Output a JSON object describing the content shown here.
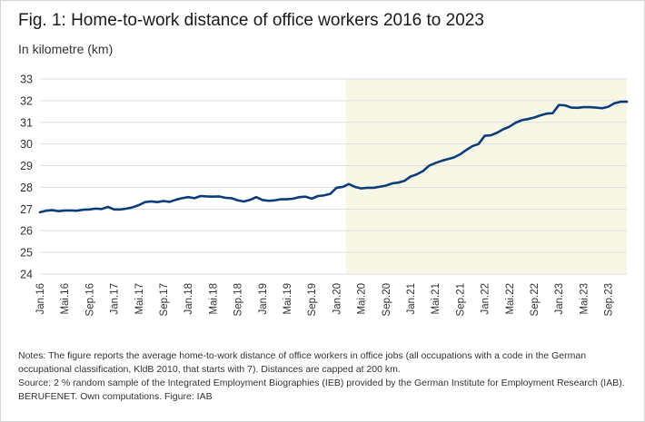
{
  "header": {
    "title": "Fig. 1: Home-to-work distance of office workers 2016 to 2023",
    "subtitle": "In kilometre (km)"
  },
  "footer": {
    "notes": "Notes: The figure reports the average home-to-work distance of office workers in office jobs (all occupations with a code in the German occupational classification, KldB 2010, that starts with 7). Distances are capped at 200 km.",
    "source": "Source: 2 % random sample of the Integrated Employment Biographies (IEB) provided by the German Institute for Employment Research (IAB). BERUFENET. Own computations. Figure: IAB"
  },
  "colors": {
    "line": "#0b3d7a",
    "highlight": "#f8f7e6",
    "grid": "#dedede"
  },
  "chart_data": {
    "type": "line",
    "title": "Fig. 1: Home-to-work distance of office workers 2016 to 2023",
    "ylabel": "In kilometre (km)",
    "ylim": [
      24,
      33
    ],
    "yticks": [
      24,
      25,
      26,
      27,
      28,
      29,
      30,
      31,
      32,
      33
    ],
    "grid": true,
    "x_start": "2016-01",
    "x_end": "2023-12",
    "xticks": [
      {
        "date": "2016-01",
        "label": "Jan.16"
      },
      {
        "date": "2016-05",
        "label": "Mai.16"
      },
      {
        "date": "2016-09",
        "label": "Sep.16"
      },
      {
        "date": "2017-01",
        "label": "Jan.17"
      },
      {
        "date": "2017-05",
        "label": "Mai.17"
      },
      {
        "date": "2017-09",
        "label": "Sep.17"
      },
      {
        "date": "2018-01",
        "label": "Jan.18"
      },
      {
        "date": "2018-05",
        "label": "Mai.18"
      },
      {
        "date": "2018-09",
        "label": "Sep.18"
      },
      {
        "date": "2019-01",
        "label": "Jan.19"
      },
      {
        "date": "2019-05",
        "label": "Mai.19"
      },
      {
        "date": "2019-09",
        "label": "Sep.19"
      },
      {
        "date": "2020-01",
        "label": "Jan.20"
      },
      {
        "date": "2020-05",
        "label": "Mai.20"
      },
      {
        "date": "2020-09",
        "label": "Sep.20"
      },
      {
        "date": "2021-01",
        "label": "Jan.21"
      },
      {
        "date": "2021-05",
        "label": "Mai.21"
      },
      {
        "date": "2021-09",
        "label": "Sep.21"
      },
      {
        "date": "2022-01",
        "label": "Jan.22"
      },
      {
        "date": "2022-05",
        "label": "Mai.22"
      },
      {
        "date": "2022-09",
        "label": "Sep.22"
      },
      {
        "date": "2023-01",
        "label": "Jan.23"
      },
      {
        "date": "2023-05",
        "label": "Mai.23"
      },
      {
        "date": "2023-09",
        "label": "Sep.23"
      }
    ],
    "shaded_region": {
      "from": "2020-03",
      "to": "2023-12"
    },
    "series": [
      {
        "x": [
          "2016-01",
          "2016-02",
          "2016-03",
          "2016-04",
          "2016-05",
          "2016-06",
          "2016-07",
          "2016-08",
          "2016-09",
          "2016-10",
          "2016-11",
          "2016-12",
          "2017-01",
          "2017-02",
          "2017-03",
          "2017-04",
          "2017-05",
          "2017-06",
          "2017-07",
          "2017-08",
          "2017-09",
          "2017-10",
          "2017-11",
          "2017-12",
          "2018-01",
          "2018-02",
          "2018-03",
          "2018-04",
          "2018-05",
          "2018-06",
          "2018-07",
          "2018-08",
          "2018-09",
          "2018-10",
          "2018-11",
          "2018-12",
          "2019-01",
          "2019-02",
          "2019-03",
          "2019-04",
          "2019-05",
          "2019-06",
          "2019-07",
          "2019-08",
          "2019-09",
          "2019-10",
          "2019-11",
          "2019-12",
          "2020-01",
          "2020-02",
          "2020-03",
          "2020-04",
          "2020-05",
          "2020-06",
          "2020-07",
          "2020-08",
          "2020-09",
          "2020-10",
          "2020-11",
          "2020-12",
          "2021-01",
          "2021-02",
          "2021-03",
          "2021-04",
          "2021-05",
          "2021-06",
          "2021-07",
          "2021-08",
          "2021-09",
          "2021-10",
          "2021-11",
          "2021-12",
          "2022-01",
          "2022-02",
          "2022-03",
          "2022-04",
          "2022-05",
          "2022-06",
          "2022-07",
          "2022-08",
          "2022-09",
          "2022-10",
          "2022-11",
          "2022-12",
          "2023-01",
          "2023-02",
          "2023-03",
          "2023-04",
          "2023-05",
          "2023-06",
          "2023-07",
          "2023-08",
          "2023-09",
          "2023-10",
          "2023-11",
          "2023-12"
        ],
        "values": [
          26.85,
          26.92,
          26.95,
          26.9,
          26.93,
          26.93,
          26.92,
          26.97,
          26.98,
          27.02,
          27.0,
          27.1,
          26.98,
          26.98,
          27.02,
          27.08,
          27.18,
          27.32,
          27.35,
          27.32,
          27.37,
          27.33,
          27.43,
          27.5,
          27.55,
          27.5,
          27.6,
          27.58,
          27.57,
          27.58,
          27.52,
          27.5,
          27.4,
          27.35,
          27.42,
          27.55,
          27.42,
          27.38,
          27.4,
          27.45,
          27.45,
          27.48,
          27.55,
          27.57,
          27.48,
          27.6,
          27.63,
          27.7,
          27.98,
          28.02,
          28.15,
          28.02,
          27.95,
          27.98,
          27.98,
          28.03,
          28.08,
          28.18,
          28.22,
          28.3,
          28.5,
          28.6,
          28.75,
          29.0,
          29.12,
          29.22,
          29.3,
          29.38,
          29.52,
          29.72,
          29.9,
          30.0,
          30.38,
          30.4,
          30.52,
          30.68,
          30.8,
          30.98,
          31.1,
          31.15,
          31.22,
          31.32,
          31.4,
          31.42,
          31.8,
          31.78,
          31.68,
          31.67,
          31.7,
          31.7,
          31.68,
          31.65,
          31.72,
          31.88,
          31.95,
          31.95
        ]
      }
    ]
  }
}
